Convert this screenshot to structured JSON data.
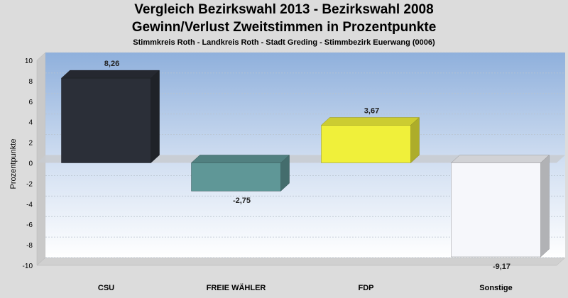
{
  "chart_data": {
    "type": "bar",
    "title": "Vergleich Bezirkswahl 2013 - Bezirkswahl 2008",
    "subtitle": "Gewinn/Verlust Zweitstimmen in Prozentpunkte",
    "subsubtitle": "Stimmkreis Roth - Landkreis Roth - Stadt Greding - Stimmbezirk Euerwang (0006)",
    "ylabel": "Prozentpunkte",
    "xlabel": "",
    "ylim": [
      -10,
      10
    ],
    "yticks": [
      10,
      8,
      6,
      4,
      2,
      0,
      -2,
      -4,
      -6,
      -8,
      -10
    ],
    "grid": true,
    "categories": [
      "CSU",
      "FREIE WÄHLER",
      "FDP",
      "Sonstige"
    ],
    "values": [
      8.26,
      -2.75,
      3.67,
      -9.17
    ],
    "value_labels": [
      "8,26",
      "-2,75",
      "3,67",
      "-9,17"
    ],
    "colors": [
      "#2b2f38",
      "#5f9797",
      "#f0f03a",
      "#f6f7fb"
    ]
  }
}
